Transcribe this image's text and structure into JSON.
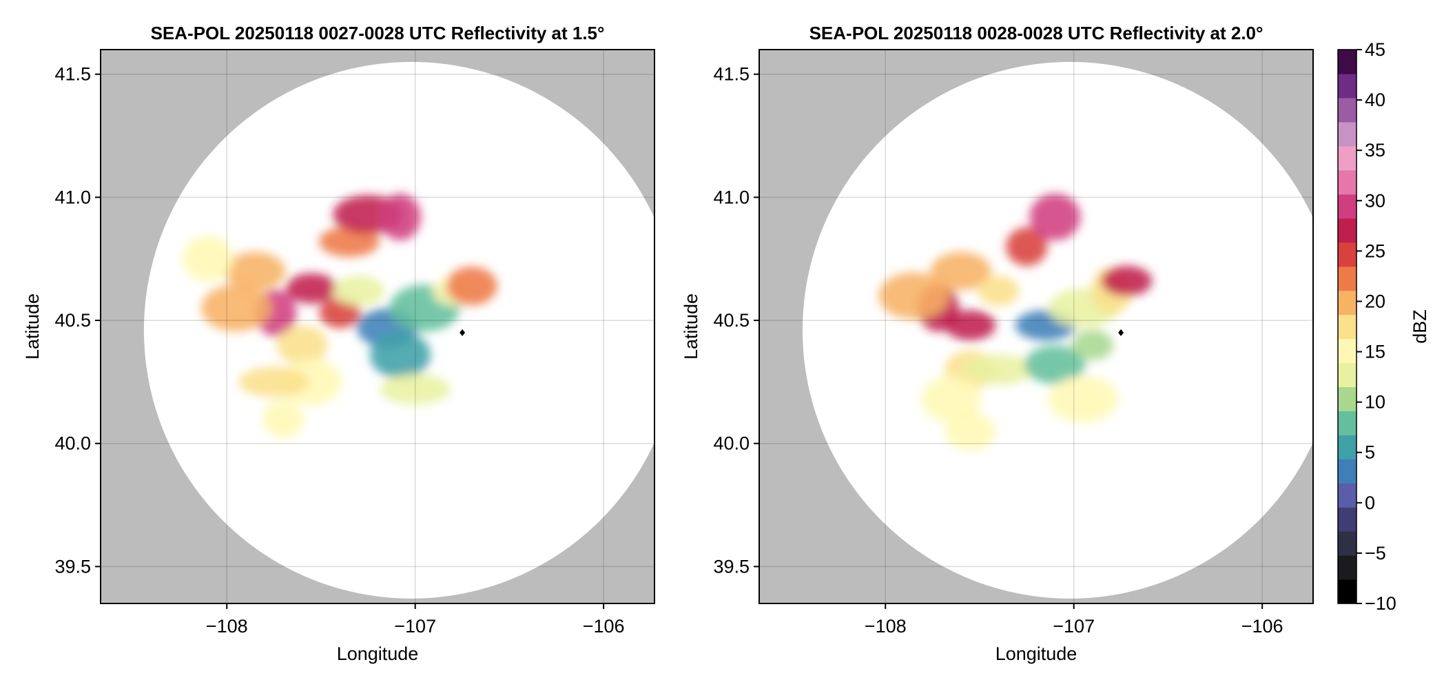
{
  "chart_data": [
    {
      "type": "heatmap",
      "title": "SEA-POL 20250118 0027-0028 UTC Reflectivity at 1.5°",
      "xlabel": "Longitude",
      "ylabel": "Latitude",
      "xlim": [
        -108.67,
        -105.73
      ],
      "ylim": [
        39.35,
        41.6
      ],
      "x_ticks": [
        -108,
        -107,
        -106
      ],
      "x_tick_labels": [
        "−108",
        "−107",
        "−106"
      ],
      "y_ticks": [
        39.5,
        40.0,
        40.5,
        41.0,
        41.5
      ],
      "y_tick_labels": [
        "39.5",
        "40.0",
        "40.5",
        "41.0",
        "41.5"
      ],
      "grid": true,
      "range_ring": {
        "center": [
          -107.02,
          40.46
        ],
        "lon_radius": 1.42,
        "lat_radius": 1.09
      },
      "radar_site": [
        -106.75,
        40.45
      ],
      "echo_cells": [
        {
          "lon": -107.74,
          "lat": 40.53,
          "dbz": 30
        },
        {
          "lon": -107.55,
          "lat": 40.63,
          "dbz": 26
        },
        {
          "lon": -107.85,
          "lat": 40.7,
          "dbz": 20
        },
        {
          "lon": -107.95,
          "lat": 40.55,
          "dbz": 19
        },
        {
          "lon": -107.4,
          "lat": 40.53,
          "dbz": 24
        },
        {
          "lon": -107.6,
          "lat": 40.4,
          "dbz": 18
        },
        {
          "lon": -107.55,
          "lat": 40.25,
          "dbz": 16
        },
        {
          "lon": -107.75,
          "lat": 40.25,
          "dbz": 17
        },
        {
          "lon": -107.7,
          "lat": 40.1,
          "dbz": 15
        },
        {
          "lon": -108.1,
          "lat": 40.75,
          "dbz": 16
        },
        {
          "lon": -107.35,
          "lat": 40.82,
          "dbz": 22
        },
        {
          "lon": -107.25,
          "lat": 40.93,
          "dbz": 27
        },
        {
          "lon": -107.08,
          "lat": 40.92,
          "dbz": 29
        },
        {
          "lon": -107.3,
          "lat": 40.62,
          "dbz": 12
        },
        {
          "lon": -107.15,
          "lat": 40.47,
          "dbz": 3
        },
        {
          "lon": -106.95,
          "lat": 40.55,
          "dbz": 9
        },
        {
          "lon": -106.8,
          "lat": 40.62,
          "dbz": 14
        },
        {
          "lon": -106.7,
          "lat": 40.64,
          "dbz": 22
        },
        {
          "lon": -107.08,
          "lat": 40.36,
          "dbz": 5
        },
        {
          "lon": -107.0,
          "lat": 40.22,
          "dbz": 12
        }
      ]
    },
    {
      "type": "heatmap",
      "title": "SEA-POL 20250118 0028-0028 UTC Reflectivity at 2.0°",
      "xlabel": "Longitude",
      "ylabel": "Latitude",
      "xlim": [
        -108.67,
        -105.73
      ],
      "ylim": [
        39.35,
        41.6
      ],
      "x_ticks": [
        -108,
        -107,
        -106
      ],
      "x_tick_labels": [
        "−108",
        "−107",
        "−106"
      ],
      "y_ticks": [
        39.5,
        40.0,
        40.5,
        41.0,
        41.5
      ],
      "y_tick_labels": [
        "39.5",
        "40.0",
        "40.5",
        "41.0",
        "41.5"
      ],
      "grid": true,
      "range_ring": {
        "center": [
          -107.02,
          40.46
        ],
        "lon_radius": 1.42,
        "lat_radius": 1.09
      },
      "radar_site": [
        -106.75,
        40.45
      ],
      "echo_cells": [
        {
          "lon": -107.72,
          "lat": 40.55,
          "dbz": 28
        },
        {
          "lon": -107.55,
          "lat": 40.48,
          "dbz": 27
        },
        {
          "lon": -107.6,
          "lat": 40.7,
          "dbz": 19
        },
        {
          "lon": -107.85,
          "lat": 40.6,
          "dbz": 20
        },
        {
          "lon": -107.4,
          "lat": 40.62,
          "dbz": 18
        },
        {
          "lon": -107.55,
          "lat": 40.3,
          "dbz": 17
        },
        {
          "lon": -107.65,
          "lat": 40.18,
          "dbz": 16
        },
        {
          "lon": -107.4,
          "lat": 40.3,
          "dbz": 12
        },
        {
          "lon": -107.25,
          "lat": 40.8,
          "dbz": 24
        },
        {
          "lon": -107.1,
          "lat": 40.92,
          "dbz": 29
        },
        {
          "lon": -107.15,
          "lat": 40.48,
          "dbz": 3
        },
        {
          "lon": -106.95,
          "lat": 40.55,
          "dbz": 13
        },
        {
          "lon": -106.8,
          "lat": 40.62,
          "dbz": 17
        },
        {
          "lon": -106.72,
          "lat": 40.66,
          "dbz": 26
        },
        {
          "lon": -107.1,
          "lat": 40.32,
          "dbz": 9
        },
        {
          "lon": -106.95,
          "lat": 40.18,
          "dbz": 15
        },
        {
          "lon": -106.9,
          "lat": 40.4,
          "dbz": 10
        },
        {
          "lon": -107.55,
          "lat": 40.05,
          "dbz": 15
        }
      ]
    }
  ],
  "colorbar": {
    "label": "dBZ",
    "min": -10,
    "max": 45,
    "ticks": [
      -10,
      -5,
      0,
      5,
      10,
      15,
      20,
      25,
      30,
      35,
      40,
      45
    ],
    "tick_labels": [
      "−10",
      "−5",
      "0",
      "5",
      "10",
      "15",
      "20",
      "25",
      "30",
      "35",
      "40",
      "45"
    ],
    "colors": [
      "#000000",
      "#1a1a1f",
      "#2f2f45",
      "#3e3e72",
      "#5a5ea8",
      "#3f7fb8",
      "#3fa0a8",
      "#63bf9d",
      "#a8d88e",
      "#e8f1a0",
      "#fff8b5",
      "#fbe08b",
      "#f7b264",
      "#ee7a48",
      "#d8413c",
      "#c01e4e",
      "#d03e7f",
      "#e777aa",
      "#ef9fc6",
      "#c992c4",
      "#9a5da4",
      "#6e2c83",
      "#3f0a48"
    ]
  },
  "colors": {
    "outside_range": "#bcbcbc",
    "background": "#ffffff",
    "radar_site": "#000000"
  }
}
